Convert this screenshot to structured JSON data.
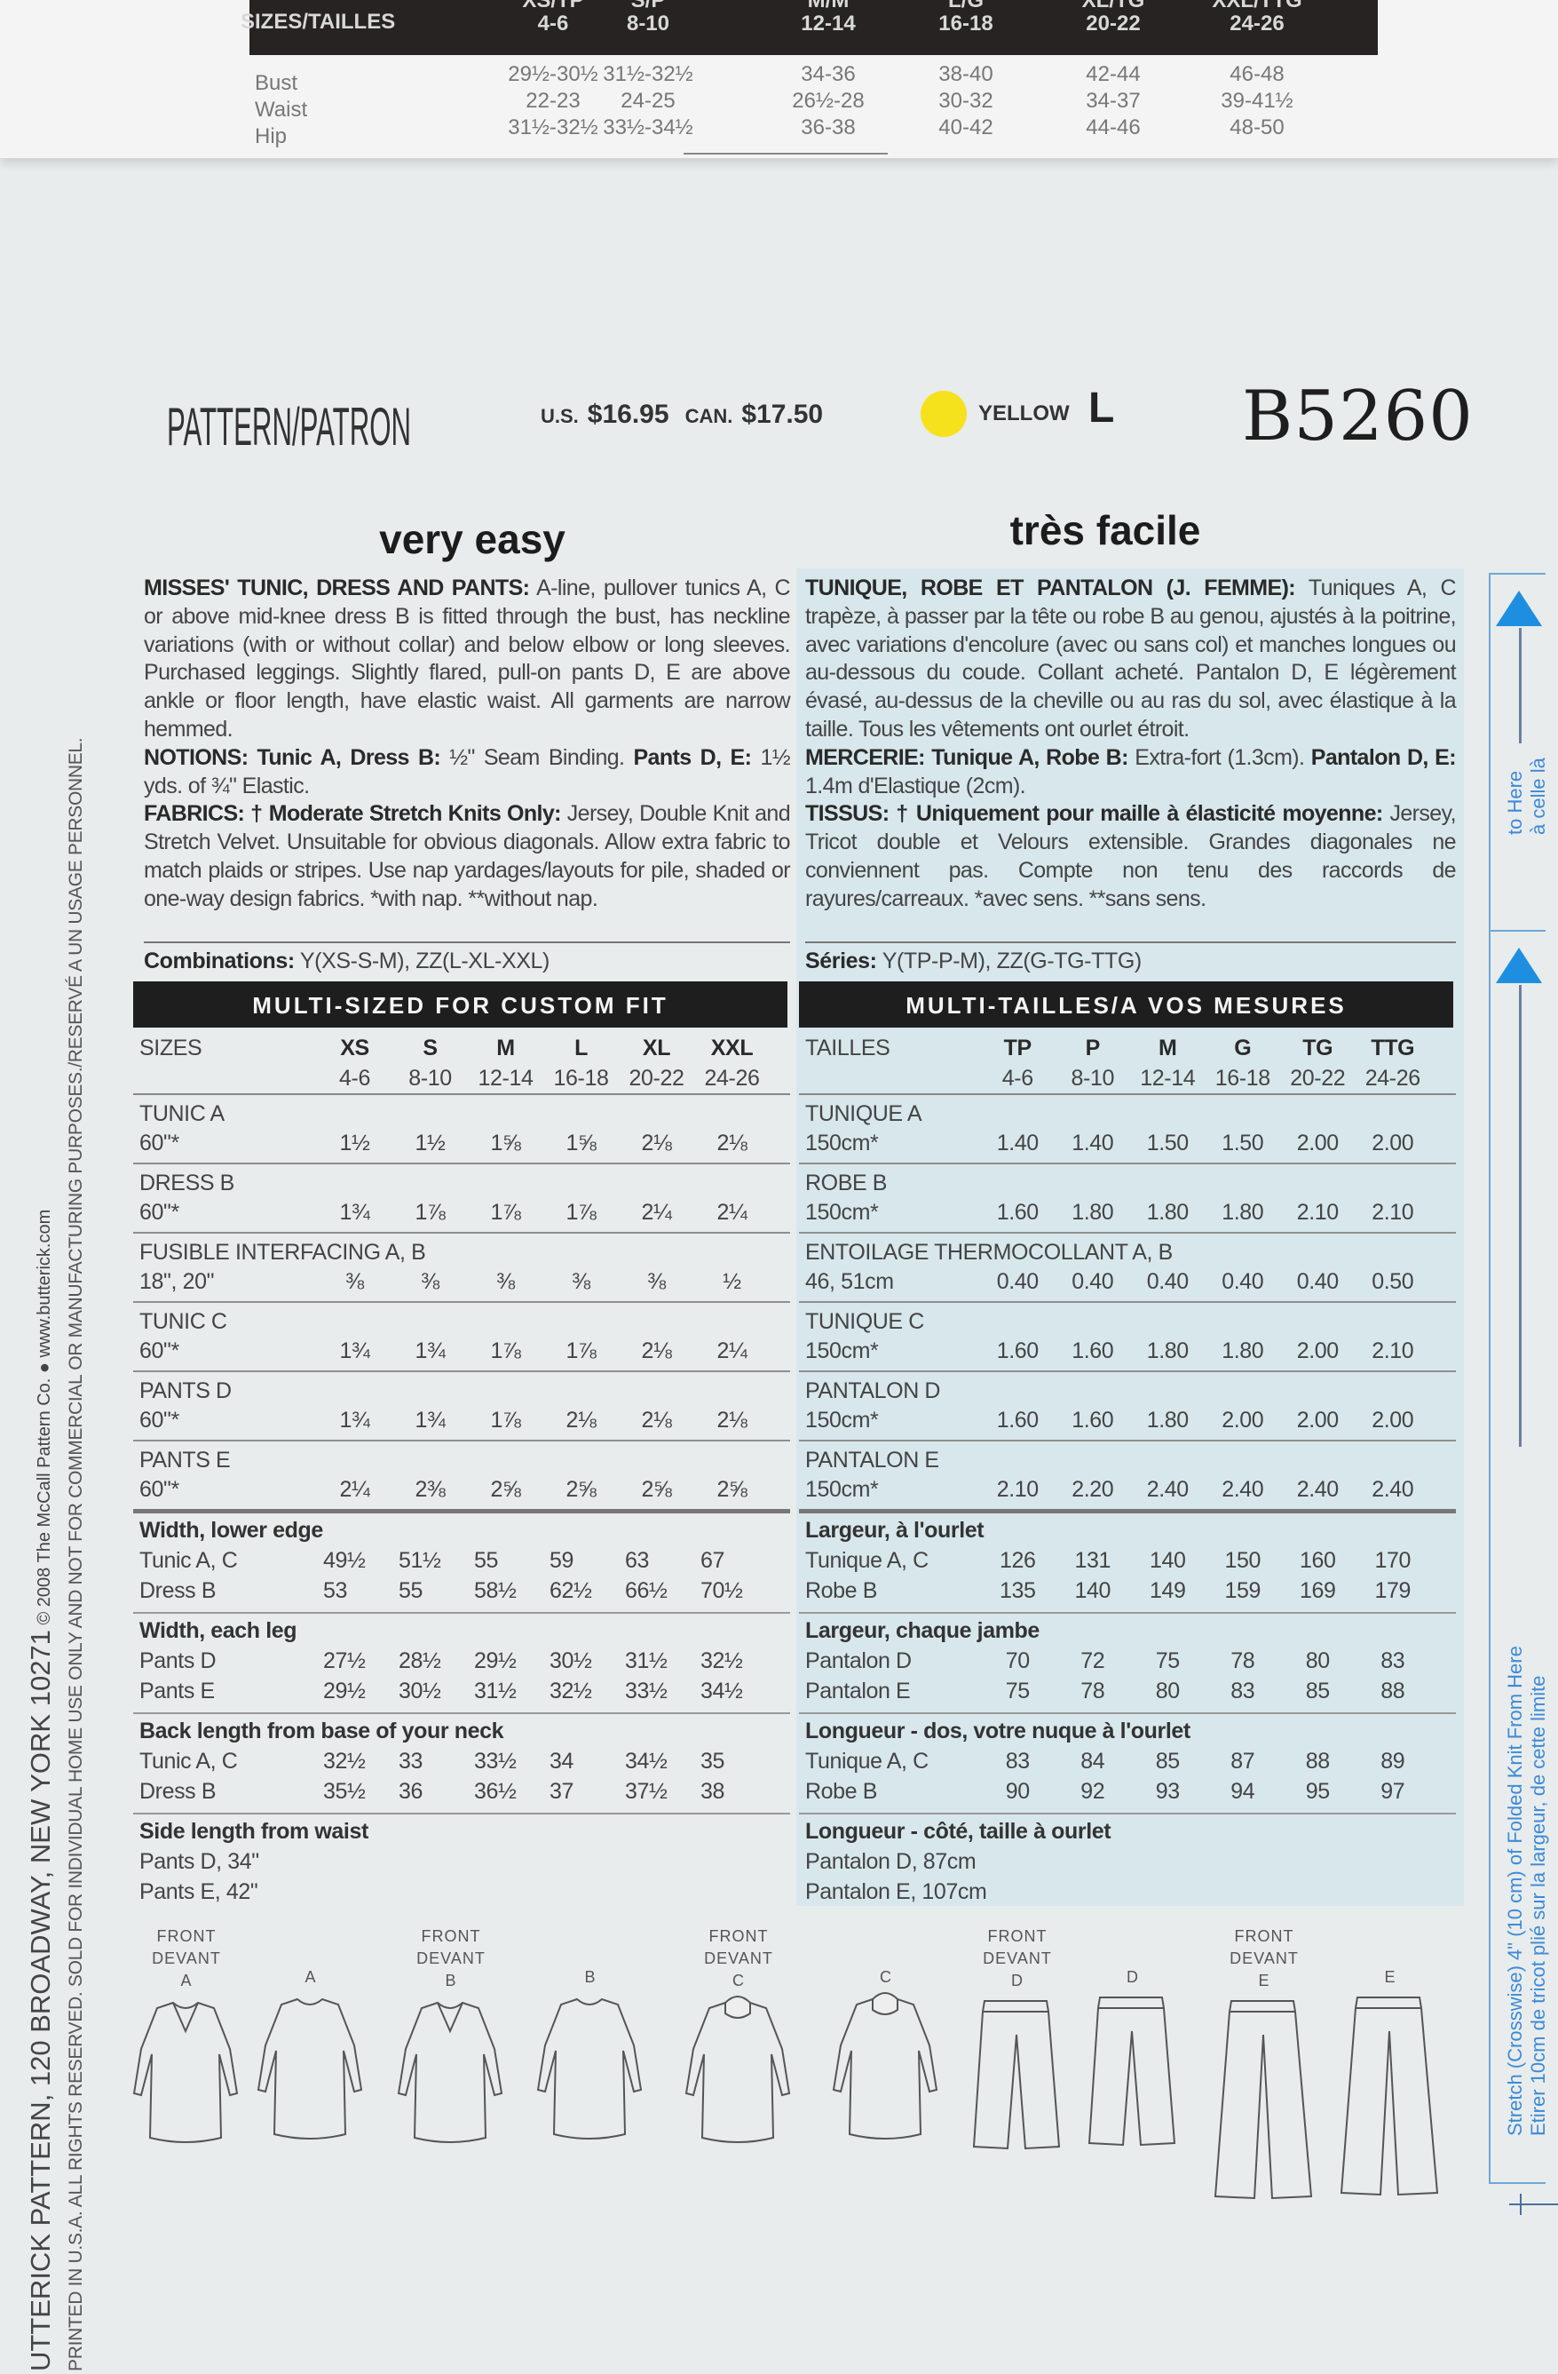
{
  "top_size_chart": {
    "header_label": "SIZES/TAILLES",
    "sizes": [
      {
        "code": "XS/TP",
        "range": "4-6"
      },
      {
        "code": "S/P",
        "range": "8-10"
      },
      {
        "code": "M/M",
        "range": "12-14"
      },
      {
        "code": "L/G",
        "range": "16-18"
      },
      {
        "code": "XL/TG",
        "range": "20-22"
      },
      {
        "code": "XXL/TTG",
        "range": "24-26"
      }
    ],
    "rows": [
      {
        "label": "Bust",
        "values": [
          "29½-30½",
          "31½-32½",
          "34-36",
          "38-40",
          "42-44",
          "46-48"
        ]
      },
      {
        "label": "Waist",
        "values": [
          "22-23",
          "24-25",
          "26½-28",
          "30-32",
          "34-37",
          "39-41½"
        ]
      },
      {
        "label": "Hip",
        "values": [
          "31½-32½",
          "33½-34½",
          "36-38",
          "40-42",
          "44-46",
          "48-50"
        ]
      }
    ]
  },
  "header": {
    "pattern_label": "PATTERN/PATRON",
    "us_label": "U.S.",
    "us_price": "$16.95",
    "can_label": "CAN.",
    "can_price": "$17.50",
    "color_name": "YELLOW",
    "color_hex": "#f6e21c",
    "group_letter": "L",
    "pattern_number": "B5260"
  },
  "english": {
    "difficulty": "very easy",
    "description": [
      [
        {
          "b": "MISSES' TUNIC, DRESS AND PANTS:"
        },
        {
          "t": " A-line, pullover tunics A, C or above mid-knee dress B is fitted through the bust, has neckline variations (with or without collar) and below elbow or long sleeves. Purchased leggings. Slightly flared, pull-on pants D, E are above ankle or floor length, have elastic waist. All garments are narrow hemmed."
        }
      ],
      [
        {
          "b": "NOTIONS: Tunic A, Dress B:"
        },
        {
          "t": " ½\" Seam Binding. "
        },
        {
          "b": "Pants D, E:"
        },
        {
          "t": " 1½ yds. of ¾\" Elastic."
        }
      ],
      [
        {
          "b": "FABRICS: † Moderate Stretch Knits Only:"
        },
        {
          "t": " Jersey, Double Knit and Stretch Velvet. Unsuitable for obvious diagonals. Allow extra fabric to match plaids or stripes. Use nap yardages/layouts for pile, shaded or one-way design fabrics. *with nap. **without nap."
        }
      ]
    ],
    "combinations_label": "Combinations:",
    "combinations_value": " Y(XS-S-M), ZZ(L-XL-XXL)",
    "table": {
      "title": "MULTI-SIZED FOR CUSTOM FIT",
      "sizes_label": "SIZES",
      "sizes": [
        {
          "code": "XS",
          "range": "4-6"
        },
        {
          "code": "S",
          "range": "8-10"
        },
        {
          "code": "M",
          "range": "12-14"
        },
        {
          "code": "L",
          "range": "16-18"
        },
        {
          "code": "XL",
          "range": "20-22"
        },
        {
          "code": "XXL",
          "range": "24-26"
        }
      ],
      "yardage": [
        {
          "name": "TUNIC A",
          "width": "60\"*",
          "values": [
            "1½",
            "1½",
            "1⅝",
            "1⅝",
            "2⅛",
            "2⅛"
          ]
        },
        {
          "name": "DRESS B",
          "width": "60\"*",
          "values": [
            "1¾",
            "1⅞",
            "1⅞",
            "1⅞",
            "2¼",
            "2¼"
          ]
        },
        {
          "name": "FUSIBLE INTERFACING A, B",
          "width": "18\", 20\"",
          "values": [
            "⅜",
            "⅜",
            "⅜",
            "⅜",
            "⅜",
            "½"
          ]
        },
        {
          "name": "TUNIC C",
          "width": "60\"*",
          "values": [
            "1¾",
            "1¾",
            "1⅞",
            "1⅞",
            "2⅛",
            "2¼"
          ]
        },
        {
          "name": "PANTS D",
          "width": "60\"*",
          "values": [
            "1¾",
            "1¾",
            "1⅞",
            "2⅛",
            "2⅛",
            "2⅛"
          ]
        },
        {
          "name": "PANTS E",
          "width": "60\"*",
          "values": [
            "2¼",
            "2⅜",
            "2⅝",
            "2⅝",
            "2⅝",
            "2⅝"
          ]
        }
      ],
      "measurements": [
        {
          "title": "Width, lower edge",
          "rows": [
            {
              "label": "Tunic A, C",
              "values": [
                "49½",
                "51½",
                "55",
                "59",
                "63",
                "67"
              ]
            },
            {
              "label": "Dress B",
              "values": [
                "53",
                "55",
                "58½",
                "62½",
                "66½",
                "70½"
              ]
            }
          ]
        },
        {
          "title": "Width, each leg",
          "rows": [
            {
              "label": "Pants D",
              "values": [
                "27½",
                "28½",
                "29½",
                "30½",
                "31½",
                "32½"
              ]
            },
            {
              "label": "Pants E",
              "values": [
                "29½",
                "30½",
                "31½",
                "32½",
                "33½",
                "34½"
              ]
            }
          ]
        },
        {
          "title": "Back length from base of your neck",
          "rows": [
            {
              "label": "Tunic A, C",
              "values": [
                "32½",
                "33",
                "33½",
                "34",
                "34½",
                "35"
              ]
            },
            {
              "label": "Dress B",
              "values": [
                "35½",
                "36",
                "36½",
                "37",
                "37½",
                "38"
              ]
            }
          ]
        }
      ],
      "side": {
        "title": "Side length from waist",
        "lines": [
          "Pants D, 34\"",
          "Pants E, 42\""
        ]
      }
    }
  },
  "french": {
    "difficulty": "très facile",
    "description": [
      [
        {
          "b": "TUNIQUE, ROBE ET PANTALON (J. FEMME):"
        },
        {
          "t": " Tuniques A, C trapèze, à passer par la tête ou robe B au genou, ajustés à la poitrine, avec variations d'encolure (avec ou sans col) et manches longues ou au-dessous du coude. Collant acheté. Pantalon D, E légèrement évasé, au-dessus de la cheville ou au ras du sol, avec élastique à la taille. Tous les vêtements ont ourlet étroit."
        }
      ],
      [
        {
          "b": "MERCERIE: Tunique A, Robe B:"
        },
        {
          "t": " Extra-fort (1.3cm). "
        },
        {
          "b": "Pantalon D, E:"
        },
        {
          "t": " 1.4m d'Elastique (2cm)."
        }
      ],
      [
        {
          "b": "TISSUS: † Uniquement pour maille à élasticité moyenne:"
        },
        {
          "t": " Jersey, Tricot double et Velours extensible. Grandes diagonales ne conviennent pas. Compte non tenu des raccords de rayures/carreaux. *avec sens. **sans sens."
        }
      ]
    ],
    "combinations_label": "Séries:",
    "combinations_value": " Y(TP-P-M), ZZ(G-TG-TTG)",
    "table": {
      "title": "MULTI-TAILLES/A VOS MESURES",
      "sizes_label": "TAILLES",
      "sizes": [
        {
          "code": "TP",
          "range": "4-6"
        },
        {
          "code": "P",
          "range": "8-10"
        },
        {
          "code": "M",
          "range": "12-14"
        },
        {
          "code": "G",
          "range": "16-18"
        },
        {
          "code": "TG",
          "range": "20-22"
        },
        {
          "code": "TTG",
          "range": "24-26"
        }
      ],
      "yardage": [
        {
          "name": "TUNIQUE A",
          "width": "150cm*",
          "values": [
            "1.40",
            "1.40",
            "1.50",
            "1.50",
            "2.00",
            "2.00"
          ]
        },
        {
          "name": "ROBE B",
          "width": "150cm*",
          "values": [
            "1.60",
            "1.80",
            "1.80",
            "1.80",
            "2.10",
            "2.10"
          ]
        },
        {
          "name": "ENTOILAGE THERMOCOLLANT A, B",
          "width": "46, 51cm",
          "values": [
            "0.40",
            "0.40",
            "0.40",
            "0.40",
            "0.40",
            "0.50"
          ]
        },
        {
          "name": "TUNIQUE C",
          "width": "150cm*",
          "values": [
            "1.60",
            "1.60",
            "1.80",
            "1.80",
            "2.00",
            "2.10"
          ]
        },
        {
          "name": "PANTALON D",
          "width": "150cm*",
          "values": [
            "1.60",
            "1.60",
            "1.80",
            "2.00",
            "2.00",
            "2.00"
          ]
        },
        {
          "name": "PANTALON E",
          "width": "150cm*",
          "values": [
            "2.10",
            "2.20",
            "2.40",
            "2.40",
            "2.40",
            "2.40"
          ]
        }
      ],
      "measurements": [
        {
          "title": "Largeur, à l'ourlet",
          "rows": [
            {
              "label": "Tunique A, C",
              "values": [
                "126",
                "131",
                "140",
                "150",
                "160",
                "170"
              ]
            },
            {
              "label": "Robe B",
              "values": [
                "135",
                "140",
                "149",
                "159",
                "169",
                "179"
              ]
            }
          ]
        },
        {
          "title": "Largeur, chaque jambe",
          "rows": [
            {
              "label": "Pantalon D",
              "values": [
                "70",
                "72",
                "75",
                "78",
                "80",
                "83"
              ]
            },
            {
              "label": "Pantalon E",
              "values": [
                "75",
                "78",
                "80",
                "83",
                "85",
                "88"
              ]
            }
          ]
        },
        {
          "title": "Longueur - dos, votre nuque à l'ourlet",
          "rows": [
            {
              "label": "Tunique A, C",
              "values": [
                "83",
                "84",
                "85",
                "87",
                "88",
                "89"
              ]
            },
            {
              "label": "Robe B",
              "values": [
                "90",
                "92",
                "93",
                "94",
                "95",
                "97"
              ]
            }
          ]
        }
      ],
      "side": {
        "title": "Longueur - côté, taille à ourlet",
        "lines": [
          "Pantalon D, 87cm",
          "Pantalon E, 107cm"
        ]
      }
    }
  },
  "sketches": {
    "front_label": "FRONT",
    "front_label_fr": "DEVANT",
    "views": [
      {
        "view": "A",
        "front": true,
        "icon": "tunic-v-neck"
      },
      {
        "view": "A",
        "front": false,
        "icon": "tunic-back"
      },
      {
        "view": "B",
        "front": true,
        "icon": "dress-v-neck"
      },
      {
        "view": "B",
        "front": false,
        "icon": "dress-back"
      },
      {
        "view": "C",
        "front": true,
        "icon": "tunic-cowl"
      },
      {
        "view": "C",
        "front": false,
        "icon": "tunic-cowl-back"
      },
      {
        "view": "D",
        "front": true,
        "icon": "pants-short"
      },
      {
        "view": "D",
        "front": false,
        "icon": "pants-short-back"
      },
      {
        "view": "E",
        "front": true,
        "icon": "pants-long"
      },
      {
        "view": "E",
        "front": false,
        "icon": "pants-long-back"
      }
    ]
  },
  "margin": {
    "line1_big": "UTTERICK PATTERN, 120 BROADWAY, NEW YORK 10271",
    "line1_small": " © 2008 The McCall Pattern Co. ● www.butterick.com",
    "line2": "PRINTED IN U.S.A. ALL RIGHTS RESERVED.  SOLD FOR INDIVIDUAL HOME USE ONLY AND NOT FOR COMMERCIAL OR MANUFACTURING PURPOSES./RESERVÉ A UN USAGE PERSONNEL."
  },
  "stretch_gauge": {
    "to_here": "to Here",
    "to_here_fr": "à celle là",
    "from_here": "Stretch (Crosswise) 4\" (10 cm) of Folded Knit From Here",
    "from_here_fr": "Etirer 10cm de tricot plié sur la largeur, de cette limite",
    "accent": "#1e8fe0"
  }
}
